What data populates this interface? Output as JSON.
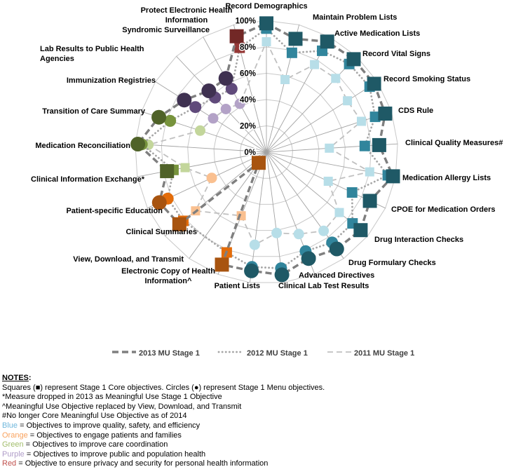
{
  "chart_data": {
    "type": "radar",
    "title": "",
    "radial_axis": {
      "min": 0,
      "max": 100,
      "ticks": [
        "0%",
        "20%",
        "40%",
        "60%",
        "80%",
        "100%"
      ],
      "grid": true
    },
    "legend_position": "bottom",
    "series": [
      {
        "name": "2013 MU Stage 1",
        "year": "2013",
        "style": "dash-thick"
      },
      {
        "name": "2012 MU Stage 1",
        "year": "2012",
        "style": "dotted"
      },
      {
        "name": "2011 MU Stage 1",
        "year": "2011",
        "style": "dash-thin"
      }
    ],
    "palette": {
      "blue": {
        "2013": "#1F5966",
        "2012": "#31859C",
        "2011": "#B7DEE8"
      },
      "orange": {
        "2013": "#A85410",
        "2012": "#E36C0A",
        "2011": "#FAC090"
      },
      "green": {
        "2013": "#4F6228",
        "2012": "#77933C",
        "2011": "#C3D69B"
      },
      "purple": {
        "2013": "#3F3151",
        "2012": "#604A7B",
        "2011": "#B3A2C7"
      },
      "red": {
        "2013": "#722826",
        "2012": "#953735",
        "2011": null
      }
    },
    "objectives": [
      {
        "label": "Record Demographics",
        "category": "blue",
        "type": "core",
        "values": {
          "2013": 98,
          "2012": 94,
          "2011": 84
        }
      },
      {
        "label": "Maintain Problem Lists",
        "category": "blue",
        "type": "core",
        "values": {
          "2013": 89,
          "2012": 78,
          "2011": 57
        }
      },
      {
        "label": "Active Medication Lists",
        "category": "blue",
        "type": "core",
        "values": {
          "2013": 96,
          "2012": 88,
          "2011": 76
        }
      },
      {
        "label": "Record Vital Signs",
        "category": "blue",
        "type": "core",
        "values": {
          "2013": 97,
          "2012": 92,
          "2011": 77
        }
      },
      {
        "label": "Record Smoking Status",
        "category": "blue",
        "type": "core",
        "values": {
          "2013": 97,
          "2012": 93,
          "2011": 73
        }
      },
      {
        "label": "CDS Rule",
        "category": "blue",
        "type": "core",
        "values": {
          "2013": 95,
          "2012": 87,
          "2011": 76
        }
      },
      {
        "label": "Clinical Quality Measures#",
        "category": "blue",
        "type": "core",
        "values": {
          "2013": 86,
          "2012": 75,
          "2011": 48
        }
      },
      {
        "label": "Medication Allergy Lists",
        "category": "blue",
        "type": "core",
        "values": {
          "2013": 98,
          "2012": 94,
          "2011": 80
        }
      },
      {
        "label": "CPOE for Medication Orders",
        "category": "blue",
        "type": "core",
        "values": {
          "2013": 87,
          "2012": 72,
          "2011": 52
        }
      },
      {
        "label": "Drug Interaction Checks",
        "category": "blue",
        "type": "core",
        "values": {
          "2013": 93,
          "2012": 85,
          "2011": 72
        }
      },
      {
        "label": "Drug Formulary Checks",
        "category": "blue",
        "type": "menu",
        "values": {
          "2013": 91,
          "2012": 85,
          "2011": 74
        }
      },
      {
        "label": "Advanced Directives",
        "category": "blue",
        "type": "menu",
        "values": {
          "2013": 87,
          "2012": 81,
          "2011": 67
        }
      },
      {
        "label": "Clinical Lab Test Results",
        "category": "blue",
        "type": "menu",
        "values": {
          "2013": 94,
          "2012": 89,
          "2011": 62
        }
      },
      {
        "label": "Patient Lists",
        "category": "blue",
        "type": "menu",
        "values": {
          "2013": 91,
          "2012": 88,
          "2011": 71
        }
      },
      {
        "label": "Electronic Copy of Health\nInformation^",
        "category": "orange",
        "type": "core",
        "values": {
          "2013": 92,
          "2012": 82,
          "2011": 52
        }
      },
      {
        "label": "View, Download, and Transmit",
        "category": "orange",
        "type": "core",
        "values": {
          "2013": 10,
          "2012": null,
          "2011": null
        }
      },
      {
        "label": "Clinical Summaries",
        "category": "orange",
        "type": "core",
        "values": {
          "2013": 86,
          "2012": 82,
          "2011": 70
        }
      },
      {
        "label": "Patient-specific Education",
        "category": "orange",
        "type": "menu",
        "values": {
          "2013": 90,
          "2012": 83,
          "2011": 46
        }
      },
      {
        "label": "Clinical Information Exchange*",
        "category": "green",
        "type": "core",
        "values": {
          "2013": 77,
          "2012": 72,
          "2011": 63
        }
      },
      {
        "label": "Medication Reconciliation",
        "category": "green",
        "type": "menu",
        "values": {
          "2013": 98,
          "2012": 95,
          "2011": 90
        }
      },
      {
        "label": "Transition of Care Summary",
        "category": "green",
        "type": "menu",
        "values": {
          "2013": 86,
          "2012": 77,
          "2011": 53
        }
      },
      {
        "label": "Immunization Registries",
        "category": "purple",
        "type": "menu",
        "values": {
          "2013": 74,
          "2012": 64,
          "2011": 48
        }
      },
      {
        "label": "Lab Results to Public Health\nAgencies",
        "category": "purple",
        "type": "menu",
        "values": {
          "2013": 64,
          "2012": 57,
          "2011": 45
        }
      },
      {
        "label": "Syndromic Surveillance",
        "category": "purple",
        "type": "menu",
        "values": {
          "2013": 64,
          "2012": 55,
          "2011": 42
        }
      },
      {
        "label": "Protect Electronic Health\nInformation",
        "category": "red",
        "type": "core",
        "values": {
          "2013": 91,
          "2012": 82,
          "2011": null
        }
      }
    ]
  },
  "legend": {
    "items": [
      {
        "label": "2013 MU Stage 1",
        "style": "dash-thick"
      },
      {
        "label": "2012 MU Stage 1",
        "style": "dotted"
      },
      {
        "label": "2011 MU Stage 1",
        "style": "dash-thin"
      }
    ]
  },
  "notes": {
    "header": "NOTES",
    "header_suffix": ":",
    "lines": [
      "Squares (■) represent Stage 1 Core objectives. Circles (●) represent Stage 1 Menu objectives.",
      "*Measure dropped in 2013 as Meaningful Use Stage 1 Objective",
      "^Meaningful Use Objective replaced by View, Download, and Transmit",
      "#No longer Core Meaningful Use Objective as of 2014"
    ],
    "color_legend": [
      {
        "term": "Blue",
        "color": "#6FB7DC",
        "text": "= Objectives to improve quality, safety, and efficiency"
      },
      {
        "term": "Orange",
        "color": "#F9A25D",
        "text": "= Objectives to engage patients and families"
      },
      {
        "term": "Green",
        "color": "#A2BD6B",
        "text": "= Objectives to  improve care coordination"
      },
      {
        "term": "Purple",
        "color": "#AF9CC8",
        "text": "= Objectives to improve public and population health"
      },
      {
        "term": "Red",
        "color": "#C0504D",
        "text": "= Objective to ensure privacy and security for personal health information"
      }
    ]
  },
  "grid_colors": {
    "ring": "#C8C8C8",
    "spoke": "#A3A3A3"
  },
  "line_styles": {
    "dash-thick": {
      "color": "#7F7F7F",
      "width": 3.4,
      "dash": "9 5",
      "cap": "butt"
    },
    "dotted": {
      "color": "#A6A6A6",
      "width": 2.8,
      "dash": "0.1 5",
      "cap": "round"
    },
    "dash-thin": {
      "color": "#C0C0C0",
      "width": 1.8,
      "dash": "8 5",
      "cap": "butt"
    }
  }
}
